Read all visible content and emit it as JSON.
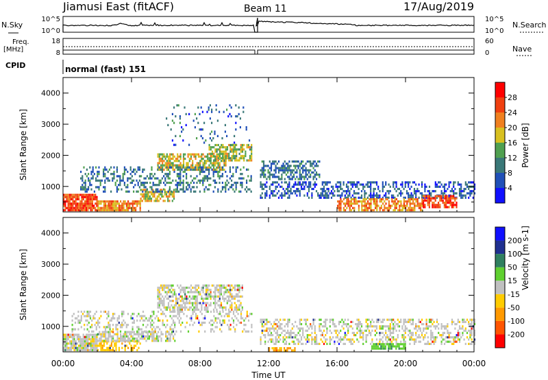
{
  "header": {
    "title": "Jiamusi East (fitACF)",
    "beam": "Beam 11",
    "date": "17/Aug/2019"
  },
  "top_panels": {
    "nsky_label": "N.Sky",
    "nsearch_label": "N.Search",
    "noise_ticks": [
      "10^5",
      "10^0"
    ],
    "freq_label_1": "Freq.",
    "freq_label_2": "[MHz]",
    "freq_ticks": [
      "18",
      "8"
    ],
    "nave_label": "Nave",
    "nave_ticks": [
      "60",
      "0"
    ],
    "cpid_label": "CPID",
    "cpid_value": "normal (fast) 151"
  },
  "xaxis": {
    "label": "Time UT",
    "ticks": [
      "00:00",
      "04:00",
      "08:00",
      "12:00",
      "16:00",
      "20:00",
      "00:00"
    ]
  },
  "colors": {
    "power": [
      "#1010ff",
      "#2050b8",
      "#3a7878",
      "#50a050",
      "#d8c020",
      "#f08020",
      "#f04010",
      "#ff0000"
    ],
    "velocity": [
      "#ff0000",
      "#ff5500",
      "#ff9900",
      "#ffcc00",
      "#c0c0c0",
      "#60d030",
      "#308060",
      "#203090",
      "#1010ff"
    ]
  },
  "chart_data": [
    {
      "type": "heatmap",
      "quantity": "Power",
      "ylabel": "Slant Range [km]",
      "xlabel": "Time UT",
      "yticks": [
        1000,
        2000,
        3000,
        4000
      ],
      "ylim": [
        180,
        4500
      ],
      "xlim_hours": [
        0,
        24
      ],
      "colorbar": {
        "label": "Power [dB]",
        "ticks": [
          4,
          8,
          12,
          16,
          20,
          24,
          28
        ],
        "range": [
          0,
          32
        ]
      },
      "regions": [
        {
          "t0": 0.0,
          "t1": 2.0,
          "r0": 200,
          "r1": 700,
          "val": 26,
          "density": 0.9
        },
        {
          "t0": 2.0,
          "t1": 4.5,
          "r0": 200,
          "r1": 500,
          "val": 22,
          "density": 0.85
        },
        {
          "t0": 4.5,
          "t1": 6.5,
          "r0": 500,
          "r1": 900,
          "val": 18,
          "density": 0.6
        },
        {
          "t0": 5.5,
          "t1": 9.5,
          "r0": 1500,
          "r1": 2000,
          "val": 18,
          "density": 0.7
        },
        {
          "t0": 8.5,
          "t1": 11.0,
          "r0": 1800,
          "r1": 2300,
          "val": 16,
          "density": 0.65
        },
        {
          "t0": 1.0,
          "t1": 11.0,
          "r0": 800,
          "r1": 1600,
          "val": 9,
          "density": 0.35
        },
        {
          "t0": 11.5,
          "t1": 15.0,
          "r0": 1200,
          "r1": 1800,
          "val": 9,
          "density": 0.55
        },
        {
          "t0": 11.5,
          "t1": 24.0,
          "r0": 600,
          "r1": 1100,
          "val": 7,
          "density": 0.45
        },
        {
          "t0": 16.0,
          "t1": 21.0,
          "r0": 200,
          "r1": 600,
          "val": 22,
          "density": 0.6
        },
        {
          "t0": 21.0,
          "t1": 23.0,
          "r0": 300,
          "r1": 700,
          "val": 26,
          "density": 0.75
        },
        {
          "t0": 6.0,
          "t1": 11.0,
          "r0": 2300,
          "r1": 3600,
          "val": 8,
          "density": 0.08
        }
      ]
    },
    {
      "type": "heatmap",
      "quantity": "Velocity",
      "ylabel": "Slant Range [km]",
      "xlabel": "Time UT",
      "yticks": [
        1000,
        2000,
        3000,
        4000
      ],
      "ylim": [
        180,
        4500
      ],
      "xlim_hours": [
        0,
        24
      ],
      "colorbar": {
        "label": "Velocity [m s-1]",
        "ticks": [
          200,
          100,
          50,
          15,
          -15,
          -50,
          -100,
          -200
        ],
        "range": [
          -250,
          250
        ]
      },
      "regions": [
        {
          "t0": 0.0,
          "t1": 2.0,
          "r0": 200,
          "r1": 700,
          "val": 0,
          "density": 0.85
        },
        {
          "t0": 2.0,
          "t1": 4.5,
          "r0": 200,
          "r1": 500,
          "val": -40,
          "density": 0.6
        },
        {
          "t0": 2.0,
          "t1": 6.5,
          "r0": 500,
          "r1": 800,
          "val": 0,
          "density": 0.7
        },
        {
          "t0": 5.5,
          "t1": 10.5,
          "r0": 1500,
          "r1": 2300,
          "val": 0,
          "density": 0.6
        },
        {
          "t0": 0.5,
          "t1": 11.0,
          "r0": 800,
          "r1": 1500,
          "val": 0,
          "density": 0.3
        },
        {
          "t0": 11.5,
          "t1": 24.0,
          "r0": 400,
          "r1": 1200,
          "val": 0,
          "density": 0.45
        },
        {
          "t0": 18.0,
          "t1": 20.0,
          "r0": 250,
          "r1": 400,
          "val": 40,
          "density": 0.6
        },
        {
          "t0": 12.0,
          "t1": 13.5,
          "r0": 190,
          "r1": 300,
          "val": -60,
          "density": 0.6
        }
      ]
    }
  ]
}
